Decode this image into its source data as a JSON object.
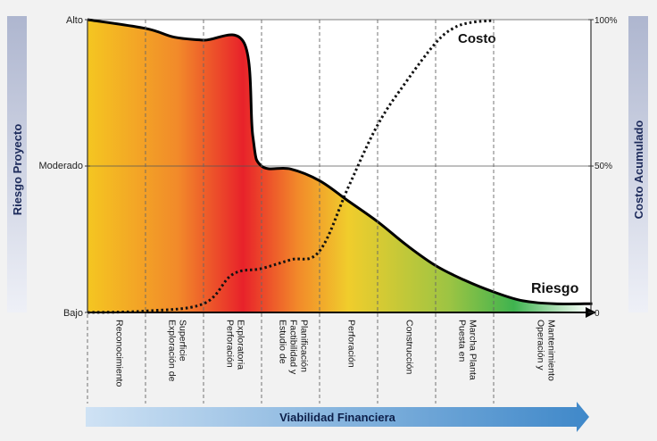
{
  "chart_data": {
    "type": "area",
    "title": "",
    "left_axis_label": "Riesgo Proyecto",
    "right_axis_label": "Costo Acumulado",
    "left_ticks": [
      "Alto",
      "Moderado",
      "Bajo"
    ],
    "right_ticks": [
      "100%",
      "50%",
      "0"
    ],
    "stages": [
      "Reconocimiento",
      "Exploración de Superficie",
      "Perforación Exploratoria",
      "Estudio de Factibilidad y Planificación",
      "Perforación",
      "Construcción",
      "Puesta en Marcha Planta",
      "Operación y Mantenimiento"
    ],
    "stage_boundaries": [
      0,
      1,
      2,
      3,
      4,
      5,
      6,
      7,
      8.7
    ],
    "risk_series": {
      "name": "Riesgo",
      "unit": "percent of Alto",
      "x": [
        0,
        1,
        1.5,
        2,
        2.7,
        2.85,
        3,
        3.5,
        4,
        4.5,
        5,
        5.5,
        6,
        6.5,
        7,
        7.5,
        8.05,
        8.7
      ],
      "y": [
        100,
        97,
        94,
        93,
        92,
        60,
        50,
        49,
        45,
        38,
        31,
        23,
        16,
        11,
        7,
        4,
        3,
        3
      ]
    },
    "cost_series": {
      "name": "Costo",
      "unit": "percent",
      "x": [
        0,
        1,
        2,
        2.5,
        3,
        3.5,
        4,
        4.5,
        5,
        5.5,
        6,
        6.3,
        6.6,
        7
      ],
      "y": [
        0,
        0.5,
        3,
        13,
        15,
        18,
        21,
        43,
        64,
        79,
        92,
        97,
        99,
        99.7
      ]
    },
    "bottom_arrow_label": "Viabilidad Financiera",
    "risk_label": "Riesgo",
    "cost_label": "Costo"
  },
  "colors": {
    "background": "#f2f2f2",
    "gradient_stops": [
      "#f4c621",
      "#f28a2a",
      "#e8222a",
      "#f28a2a",
      "#f0cd2c",
      "#9dc443",
      "#3fb34f",
      "#ffffff"
    ],
    "arrow_blue": "#3f88c9"
  }
}
